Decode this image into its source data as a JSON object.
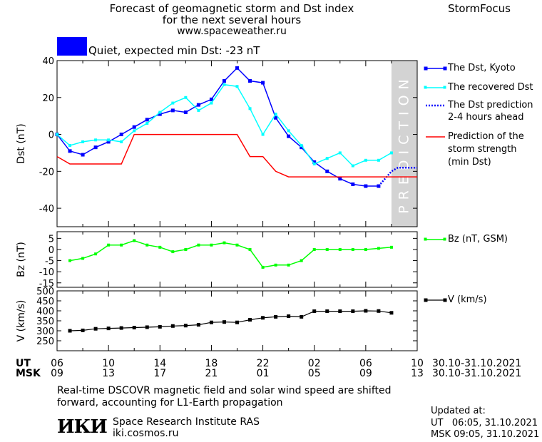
{
  "header": {
    "title_line1": "Forecast of geomagnetic storm and Dst index",
    "title_line2": "for the next several hours",
    "url": "www.spaceweather.ru",
    "brand": "StormFocus"
  },
  "status": {
    "text": "Quiet, expected min Dst: -23 nT",
    "color": "#0000ff"
  },
  "legend": {
    "dst_kyoto": "The Dst, Kyoto",
    "dst_recovered": "The recovered Dst",
    "dst_pred_1": "The Dst prediction",
    "dst_pred_2": "2-4 hours ahead",
    "storm_1": "Prediction of the",
    "storm_2": "storm strength",
    "storm_3": "(min Dst)",
    "bz": "Bz (nT, GSM)",
    "v": "V (km/s)"
  },
  "prediction_label": "PREDICTION",
  "time_axis": {
    "ut_label": "UT",
    "msk_label": "MSK",
    "ut_ticks": [
      "06",
      "10",
      "14",
      "18",
      "22",
      "02",
      "06",
      "10"
    ],
    "msk_ticks": [
      "09",
      "13",
      "17",
      "21",
      "01",
      "05",
      "09",
      "13"
    ],
    "date_range_ut": "30.10-31.10.2021",
    "date_range_msk": "30.10-31.10.2021"
  },
  "footer": {
    "note_line1": "Real-time DSCOVR magnetic field and solar wind speed are shifted",
    "note_line2": "forward, accounting for L1-Earth propagation",
    "logo": "ИКИ",
    "institute": "Space Research Institute RAS",
    "site": "iki.cosmos.ru",
    "updated_label": "Updated at:",
    "updated_ut": "UT   06:05, 31.10.2021",
    "updated_msk": "MSK 09:05, 31.10.2021"
  },
  "colors": {
    "dst_kyoto": "#0000ff",
    "dst_recovered": "#00ffff",
    "dst_prediction": "#0000ff",
    "storm": "#ff0000",
    "bz": "#00ff00",
    "v": "#000000",
    "prediction_band": "#d3d3d3"
  },
  "chart_data": [
    {
      "type": "line",
      "ylabel": "Dst (nT)",
      "ylim": [
        -50,
        40
      ],
      "yticks": [
        40,
        20,
        0,
        -20,
        -40
      ],
      "x_hours_ut_range": [
        6,
        34
      ],
      "prediction_band_hours": [
        32,
        34
      ],
      "series": [
        {
          "name": "The Dst, Kyoto",
          "x": [
            6,
            7,
            8,
            9,
            10,
            11,
            12,
            13,
            14,
            15,
            16,
            17,
            18,
            19,
            20,
            21,
            22,
            23,
            24,
            25,
            26,
            27,
            28,
            29,
            30,
            31
          ],
          "values": [
            0,
            -9,
            -11,
            -7,
            -4,
            0,
            4,
            8,
            11,
            13,
            12,
            16,
            19,
            29,
            36,
            29,
            28,
            9,
            -1,
            -7,
            -15,
            -20,
            -24,
            -27,
            -28,
            -28
          ]
        },
        {
          "name": "The recovered Dst",
          "x": [
            6,
            7,
            8,
            9,
            10,
            11,
            12,
            13,
            14,
            15,
            16,
            17,
            18,
            19,
            20,
            21,
            22,
            23,
            24,
            25,
            26,
            27,
            28,
            29,
            30,
            31,
            32
          ],
          "values": [
            0,
            -6,
            -4,
            -3,
            -3,
            -4,
            2,
            6,
            12,
            17,
            20,
            13,
            17,
            27,
            26,
            14,
            0,
            11,
            2,
            -6,
            -16,
            -13,
            -10,
            -17,
            -14,
            -14,
            -10
          ]
        },
        {
          "name": "The Dst prediction 2-4 hours ahead",
          "x": [
            31,
            31.5,
            32,
            32.5,
            33,
            33.5,
            34
          ],
          "values": [
            -28,
            -24,
            -20,
            -18,
            -18,
            -18,
            -18
          ]
        },
        {
          "name": "Prediction of the storm strength (min Dst)",
          "x": [
            6,
            7,
            8,
            9,
            10,
            11,
            12,
            13,
            14,
            15,
            16,
            17,
            18,
            19,
            20,
            21,
            22,
            23,
            24,
            25,
            26,
            27,
            28,
            29,
            30,
            31,
            32,
            33,
            34
          ],
          "values": [
            -12,
            -16,
            -16,
            -16,
            -16,
            -16,
            0,
            0,
            0,
            0,
            0,
            0,
            0,
            0,
            0,
            -12,
            -12,
            -20,
            -23,
            -23,
            -23,
            -23,
            -23,
            -23,
            -23,
            -23,
            -23,
            -23,
            -23
          ]
        }
      ]
    },
    {
      "type": "line",
      "ylabel": "Bz (nT)",
      "ylim": [
        -17,
        8
      ],
      "yticks": [
        5,
        0,
        -5,
        -10,
        -15
      ],
      "series": [
        {
          "name": "Bz (nT, GSM)",
          "x": [
            7,
            8,
            9,
            10,
            11,
            12,
            13,
            14,
            15,
            16,
            17,
            18,
            19,
            20,
            21,
            22,
            23,
            24,
            25,
            26,
            27,
            28,
            29,
            30,
            31,
            32
          ],
          "values": [
            -5,
            -4,
            -2,
            2,
            2,
            4,
            2,
            1,
            -1,
            0,
            2,
            2,
            3,
            2,
            0,
            -8,
            -7,
            -7,
            -5,
            0,
            0,
            0,
            0,
            0,
            0.5,
            1
          ]
        }
      ]
    },
    {
      "type": "line",
      "ylabel": "V (km/s)",
      "ylim": [
        200,
        500
      ],
      "yticks": [
        500,
        450,
        400,
        350,
        300,
        250
      ],
      "series": [
        {
          "name": "V (km/s)",
          "x": [
            7,
            8,
            9,
            10,
            11,
            12,
            13,
            14,
            15,
            16,
            17,
            18,
            19,
            20,
            21,
            22,
            23,
            24,
            25,
            26,
            27,
            28,
            29,
            30,
            31,
            32
          ],
          "values": [
            300,
            302,
            310,
            312,
            314,
            316,
            318,
            320,
            324,
            326,
            330,
            342,
            344,
            342,
            355,
            365,
            370,
            373,
            370,
            398,
            398,
            398,
            398,
            400,
            399,
            390
          ]
        }
      ]
    }
  ]
}
